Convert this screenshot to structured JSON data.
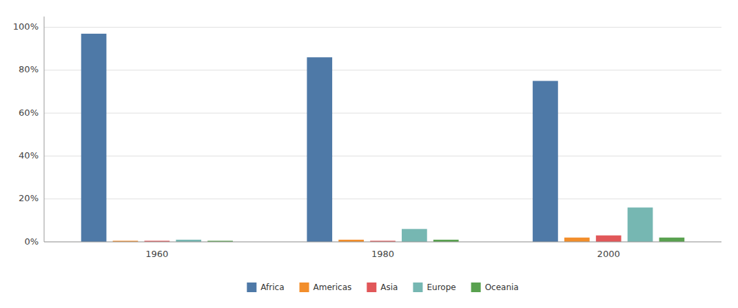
{
  "chart_data": {
    "type": "bar",
    "categories": [
      "1960",
      "1980",
      "2000"
    ],
    "series": [
      {
        "name": "Africa",
        "color": "#4e79a7",
        "values": [
          0.97,
          0.86,
          0.75
        ]
      },
      {
        "name": "Americas",
        "color": "#f28e2b",
        "values": [
          0.005,
          0.01,
          0.02
        ]
      },
      {
        "name": "Asia",
        "color": "#e15759",
        "values": [
          0.005,
          0.005,
          0.03
        ]
      },
      {
        "name": "Europe",
        "color": "#76b7b2",
        "values": [
          0.01,
          0.06,
          0.16
        ]
      },
      {
        "name": "Oceania",
        "color": "#59a14f",
        "values": [
          0.005,
          0.01,
          0.02
        ]
      }
    ],
    "ylim": [
      0,
      1.05
    ],
    "yticks": [
      {
        "value": 0.0,
        "label": "0%"
      },
      {
        "value": 0.2,
        "label": "20%"
      },
      {
        "value": 0.4,
        "label": "40%"
      },
      {
        "value": 0.6,
        "label": "60%"
      },
      {
        "value": 0.8,
        "label": "80%"
      },
      {
        "value": 1.0,
        "label": "100%"
      }
    ],
    "grid": true,
    "legend": "bottom"
  }
}
